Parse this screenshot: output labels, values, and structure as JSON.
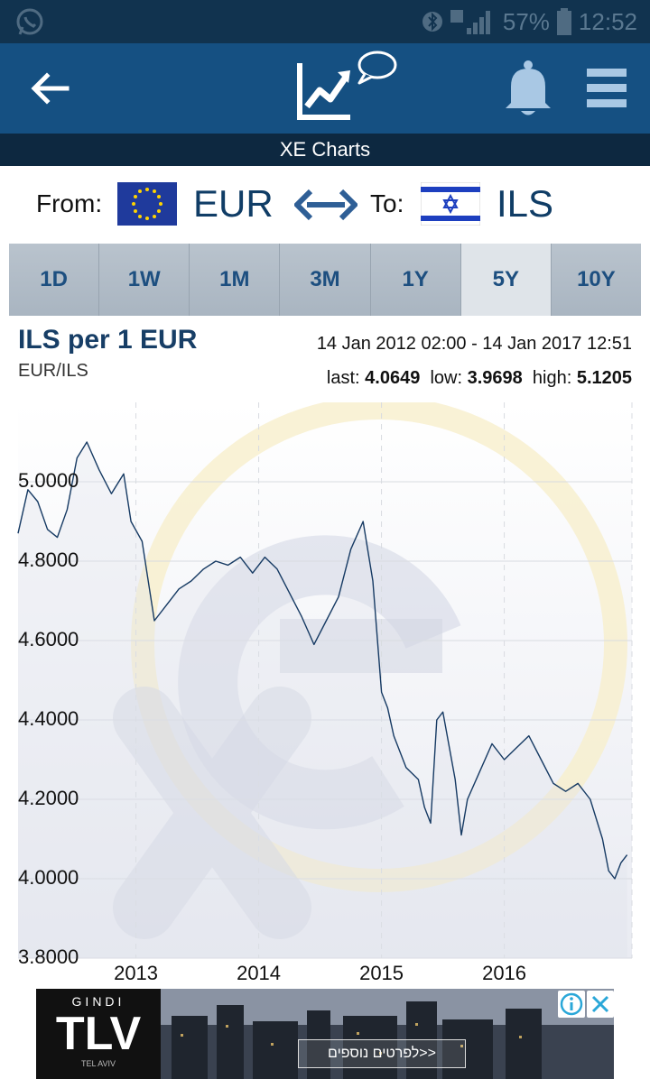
{
  "status_bar": {
    "battery": "57%",
    "time": "12:52"
  },
  "header": {
    "subtitle": "XE Charts"
  },
  "pair": {
    "from_label": "From:",
    "from_code": "EUR",
    "to_label": "To:",
    "to_code": "ILS"
  },
  "tabs": [
    {
      "label": "1D"
    },
    {
      "label": "1W"
    },
    {
      "label": "1M"
    },
    {
      "label": "3M"
    },
    {
      "label": "1Y"
    },
    {
      "label": "5Y",
      "active": true
    },
    {
      "label": "10Y"
    }
  ],
  "chart": {
    "title": "ILS per 1 EUR",
    "subtitle": "EUR/ILS",
    "range": "14 Jan 2012 02:00 - 14 Jan 2017 12:51",
    "last_label": "last:",
    "last_value": "4.0649",
    "low_label": "low:",
    "low_value": "3.9698",
    "high_label": "high:",
    "high_value": "5.1205"
  },
  "chart_data": {
    "type": "line",
    "x_tick_labels": [
      "2013",
      "2014",
      "2015",
      "2016"
    ],
    "x_ticks": [
      2013.0,
      2014.0,
      2015.0,
      2016.0
    ],
    "xlim": [
      2012.04,
      2017.04
    ],
    "y_tick_labels": [
      "3.8000",
      "4.0000",
      "4.2000",
      "4.4000",
      "4.6000",
      "4.8000",
      "5.0000"
    ],
    "y_ticks": [
      3.8,
      4.0,
      4.2,
      4.4,
      4.6,
      4.8,
      5.0
    ],
    "ylim": [
      3.8,
      5.2
    ],
    "grid": true,
    "series": [
      {
        "x": [
          2012.04,
          2012.12,
          2012.2,
          2012.28,
          2012.36,
          2012.44,
          2012.52,
          2012.6,
          2012.7,
          2012.8,
          2012.9,
          2012.96,
          2013.05,
          2013.15,
          2013.25,
          2013.35,
          2013.45,
          2013.55,
          2013.65,
          2013.75,
          2013.85,
          2013.95,
          2014.05,
          2014.15,
          2014.25,
          2014.35,
          2014.45,
          2014.55,
          2014.65,
          2014.75,
          2014.85,
          2014.93,
          2015.0,
          2015.05,
          2015.1,
          2015.2,
          2015.3,
          2015.35,
          2015.4,
          2015.45,
          2015.5,
          2015.6,
          2015.65,
          2015.7,
          2015.8,
          2015.9,
          2016.0,
          2016.1,
          2016.2,
          2016.3,
          2016.4,
          2016.5,
          2016.6,
          2016.7,
          2016.8,
          2016.85,
          2016.9,
          2016.95,
          2017.0
        ],
        "y": [
          4.87,
          4.98,
          4.95,
          4.88,
          4.86,
          4.93,
          5.06,
          5.1,
          5.03,
          4.97,
          5.02,
          4.9,
          4.85,
          4.65,
          4.69,
          4.73,
          4.75,
          4.78,
          4.8,
          4.79,
          4.81,
          4.77,
          4.81,
          4.78,
          4.72,
          4.66,
          4.59,
          4.65,
          4.71,
          4.83,
          4.9,
          4.75,
          4.47,
          4.43,
          4.36,
          4.28,
          4.25,
          4.18,
          4.14,
          4.4,
          4.42,
          4.25,
          4.11,
          4.2,
          4.27,
          4.34,
          4.3,
          4.33,
          4.36,
          4.3,
          4.24,
          4.22,
          4.24,
          4.2,
          4.1,
          4.02,
          4.0,
          4.04,
          4.06
        ]
      }
    ]
  }
}
